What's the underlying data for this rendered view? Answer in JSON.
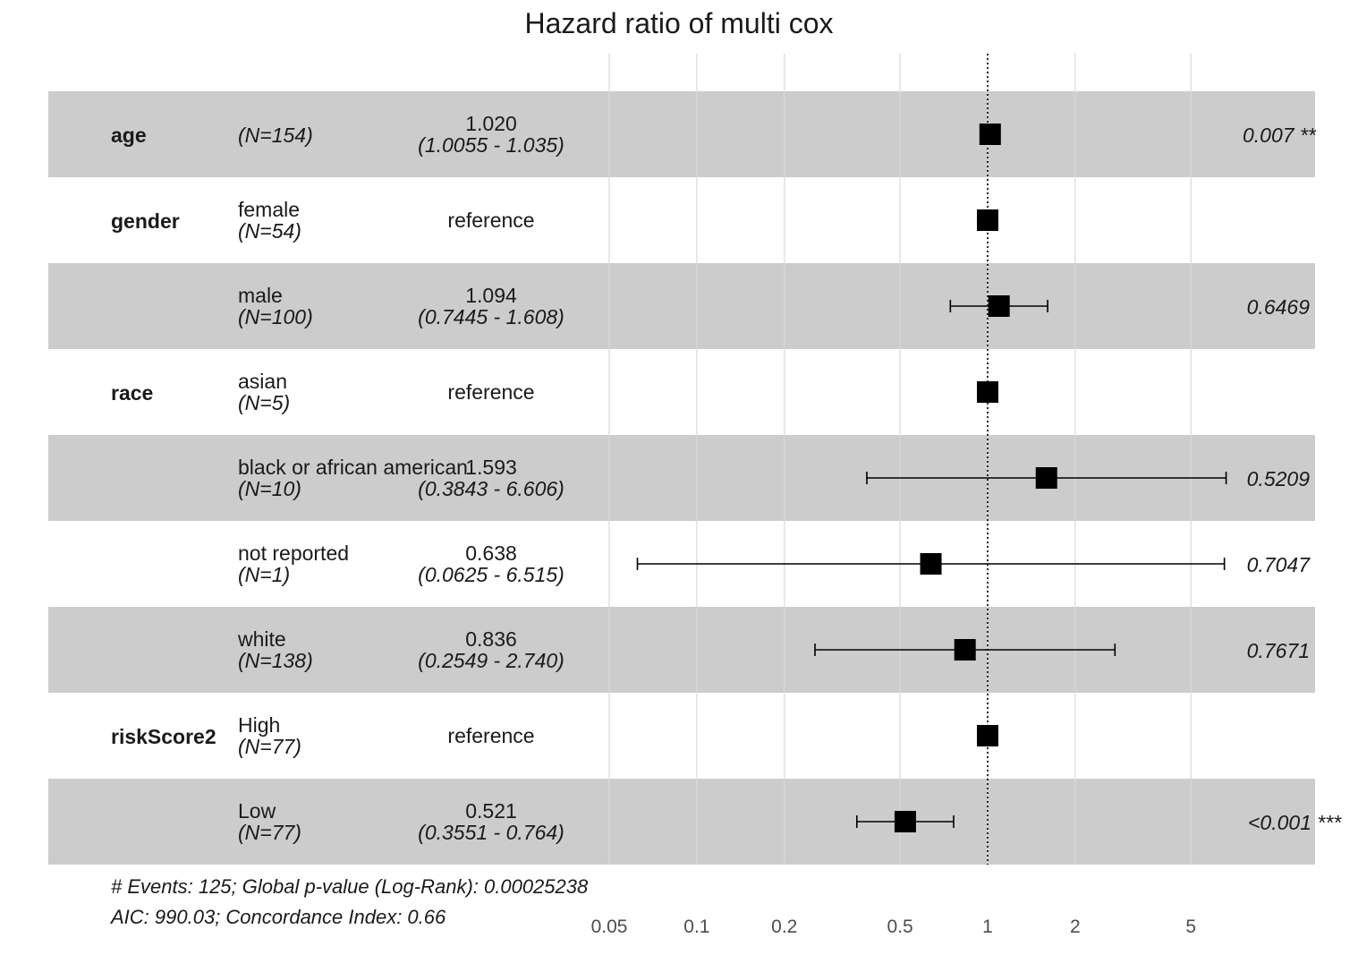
{
  "title": "Hazard ratio of multi cox",
  "footer": {
    "line1": "# Events: 125; Global p-value (Log-Rank): 0.00025238",
    "line2": "AIC: 990.03; Concordance Index: 0.66"
  },
  "chart_data": {
    "type": "forest",
    "title": "Hazard ratio of multi cox",
    "x_scale": "log",
    "x_ticks": [
      0.05,
      0.1,
      0.2,
      0.5,
      1,
      2,
      5
    ],
    "x_tick_labels": [
      "0.05",
      "0.1",
      "0.2",
      "0.5",
      "1",
      "2",
      "5"
    ],
    "xlim": [
      0.05,
      8
    ],
    "reference_line": 1,
    "rows": [
      {
        "variable": "age",
        "level": "",
        "n": "(N=154)",
        "hr_text": "1.020",
        "ci_text": "(1.0055 - 1.035)",
        "hr": 1.02,
        "lower": 1.0055,
        "upper": 1.035,
        "p": "0.007 **"
      },
      {
        "variable": "gender",
        "level": "female",
        "n": "(N=54)",
        "hr_text": "reference",
        "ci_text": "",
        "hr": 1,
        "lower": null,
        "upper": null,
        "p": ""
      },
      {
        "variable": "",
        "level": "male",
        "n": "(N=100)",
        "hr_text": "1.094",
        "ci_text": "(0.7445 - 1.608)",
        "hr": 1.094,
        "lower": 0.7445,
        "upper": 1.608,
        "p": "0.6469"
      },
      {
        "variable": "race",
        "level": "asian",
        "n": "(N=5)",
        "hr_text": "reference",
        "ci_text": "",
        "hr": 1,
        "lower": null,
        "upper": null,
        "p": ""
      },
      {
        "variable": "",
        "level": "black or african american",
        "n": "(N=10)",
        "hr_text": "1.593",
        "ci_text": "(0.3843 - 6.606)",
        "hr": 1.593,
        "lower": 0.3843,
        "upper": 6.606,
        "p": "0.5209"
      },
      {
        "variable": "",
        "level": "not reported",
        "n": "(N=1)",
        "hr_text": "0.638",
        "ci_text": "(0.0625 - 6.515)",
        "hr": 0.638,
        "lower": 0.0625,
        "upper": 6.515,
        "p": "0.7047"
      },
      {
        "variable": "",
        "level": "white",
        "n": "(N=138)",
        "hr_text": "0.836",
        "ci_text": "(0.2549 - 2.740)",
        "hr": 0.836,
        "lower": 0.2549,
        "upper": 2.74,
        "p": "0.7671"
      },
      {
        "variable": "riskScore2",
        "level": "High",
        "n": "(N=77)",
        "hr_text": "reference",
        "ci_text": "",
        "hr": 1,
        "lower": null,
        "upper": null,
        "p": ""
      },
      {
        "variable": "",
        "level": "Low",
        "n": "(N=77)",
        "hr_text": "0.521",
        "ci_text": "(0.3551 - 0.764)",
        "hr": 0.521,
        "lower": 0.3551,
        "upper": 0.764,
        "p": "<0.001 ***"
      }
    ],
    "colors": {
      "band": "#cccccc",
      "grid": "#d9d9d9",
      "marker": "#000000"
    }
  }
}
